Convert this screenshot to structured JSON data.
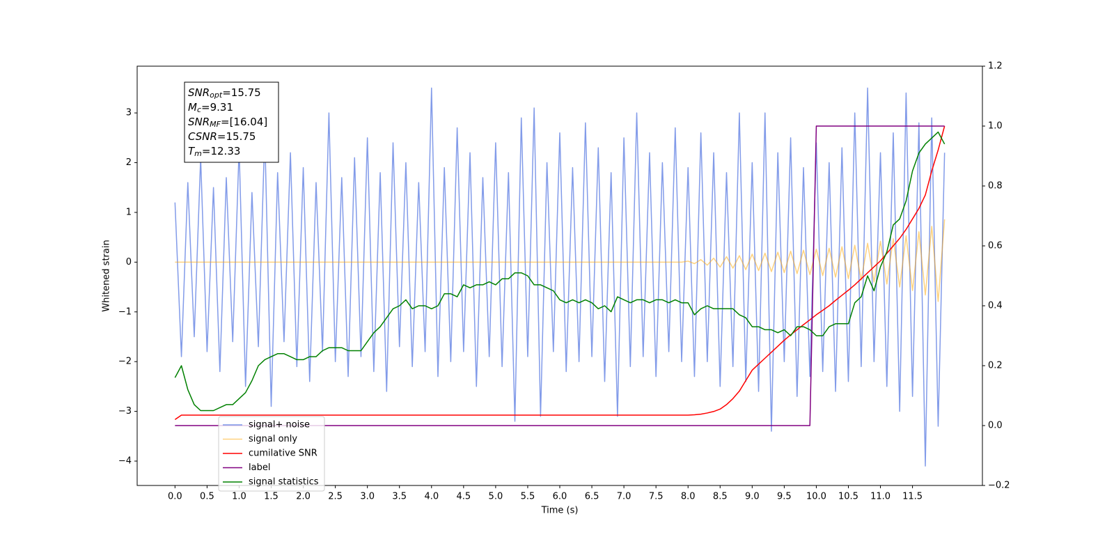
{
  "chart_data": {
    "type": "line",
    "xlabel": "Time (s)",
    "ylabel": "Whitened strain",
    "xlim": [
      -0.59,
      12.59
    ],
    "ylim": [
      -4.49,
      3.94
    ],
    "y2lim": [
      -0.2,
      1.2
    ],
    "xticks": [
      {
        "value": 0,
        "label": "0.0"
      },
      {
        "value": 0.5,
        "label": "0.5"
      },
      {
        "value": 1,
        "label": "1.0"
      },
      {
        "value": 1.5,
        "label": "1.5"
      },
      {
        "value": 2,
        "label": "2.0"
      },
      {
        "value": 2.5,
        "label": "2.5"
      },
      {
        "value": 3,
        "label": "3.0"
      },
      {
        "value": 3.5,
        "label": "3.5"
      },
      {
        "value": 4,
        "label": "4.0"
      },
      {
        "value": 4.5,
        "label": "4.5"
      },
      {
        "value": 5,
        "label": "5.0"
      },
      {
        "value": 5.5,
        "label": "5.5"
      },
      {
        "value": 6,
        "label": "6.0"
      },
      {
        "value": 6.5,
        "label": "6.5"
      },
      {
        "value": 7,
        "label": "7.0"
      },
      {
        "value": 7.5,
        "label": "7.5"
      },
      {
        "value": 8,
        "label": "8.0"
      },
      {
        "value": 8.5,
        "label": "8.5"
      },
      {
        "value": 9,
        "label": "9.0"
      },
      {
        "value": 9.5,
        "label": "9.5"
      },
      {
        "value": 10,
        "label": "10.0"
      },
      {
        "value": 10.5,
        "label": "10.5"
      },
      {
        "value": 11,
        "label": "11.0"
      },
      {
        "value": 11.5,
        "label": "11.5"
      }
    ],
    "yticks": [
      {
        "value": -4,
        "label": "−4"
      },
      {
        "value": -3,
        "label": "−3"
      },
      {
        "value": -2,
        "label": "−2"
      },
      {
        "value": -1,
        "label": "−1"
      },
      0,
      1,
      2,
      3
    ],
    "y2ticks": [
      {
        "value": -0.2,
        "label": "−0.2"
      },
      {
        "value": 0,
        "label": "0.0"
      },
      {
        "value": 0.2,
        "label": "0.2"
      },
      {
        "value": 0.4,
        "label": "0.4"
      },
      {
        "value": 0.6,
        "label": "0.6"
      },
      {
        "value": 0.8,
        "label": "0.8"
      },
      {
        "value": 1,
        "label": "1.0"
      },
      {
        "value": 1.2,
        "label": "1.2"
      }
    ],
    "legend_loc": "lower left",
    "annotation": [
      {
        "main": "SNR",
        "sub": "opt",
        "rest": "=15.75"
      },
      {
        "main": "M",
        "sub": "c",
        "rest": "=9.31"
      },
      {
        "main": "SNR",
        "sub": "MF",
        "rest": "=[16.04]"
      },
      {
        "main": "CSNR",
        "rest": "=15.75"
      },
      {
        "main": "T",
        "sub": "m",
        "rest": "=12.33"
      }
    ],
    "x": [
      0,
      0.1,
      0.2,
      0.3,
      0.4,
      0.5,
      0.6,
      0.7,
      0.8,
      0.9,
      1,
      1.1,
      1.2,
      1.3,
      1.4,
      1.5,
      1.6,
      1.7,
      1.8,
      1.9,
      2,
      2.1,
      2.2,
      2.3,
      2.4,
      2.5,
      2.6,
      2.7,
      2.8,
      2.9,
      3,
      3.1,
      3.2,
      3.3,
      3.4,
      3.5,
      3.6,
      3.7,
      3.8,
      3.9,
      4,
      4.1,
      4.2,
      4.3,
      4.4,
      4.5,
      4.6,
      4.7,
      4.8,
      4.9,
      5,
      5.1,
      5.2,
      5.3,
      5.4,
      5.5,
      5.6,
      5.7,
      5.8,
      5.9,
      6,
      6.1,
      6.2,
      6.3,
      6.4,
      6.5,
      6.6,
      6.7,
      6.8,
      6.9,
      7,
      7.1,
      7.2,
      7.3,
      7.4,
      7.5,
      7.6,
      7.7,
      7.8,
      7.9,
      8,
      8.1,
      8.2,
      8.3,
      8.4,
      8.5,
      8.6,
      8.7,
      8.8,
      8.9,
      9,
      9.1,
      9.2,
      9.3,
      9.4,
      9.5,
      9.6,
      9.7,
      9.8,
      9.9,
      10,
      10.1,
      10.2,
      10.3,
      10.4,
      10.5,
      10.6,
      10.7,
      10.8,
      10.9,
      11,
      11.1,
      11.2,
      11.3,
      11.4,
      11.5,
      11.6,
      11.7,
      11.8,
      11.9,
      12
    ],
    "series": [
      {
        "name": "signal+ noise",
        "color": "#7b96e8",
        "values": [
          1.2,
          -1.9,
          1.6,
          -1.5,
          2.1,
          -1.8,
          1.5,
          -2.2,
          1.7,
          -1.6,
          2.3,
          -2.5,
          1.4,
          -1.7,
          2.6,
          -2.9,
          1.8,
          -1.6,
          2.2,
          -2.1,
          1.9,
          -2.4,
          1.6,
          -1.8,
          3.0,
          -2.0,
          1.7,
          -2.3,
          2.1,
          -1.9,
          2.5,
          -2.2,
          1.8,
          -2.6,
          2.4,
          -1.7,
          2.0,
          -2.1,
          1.6,
          -1.8,
          3.5,
          -2.3,
          1.9,
          -2.0,
          2.7,
          -1.8,
          2.2,
          -2.5,
          1.7,
          -1.9,
          2.4,
          -2.1,
          1.8,
          -3.2,
          2.9,
          -1.9,
          3.1,
          -3.1,
          2.0,
          -1.8,
          2.6,
          -2.2,
          1.9,
          -2.0,
          2.8,
          -1.9,
          2.3,
          -2.4,
          1.8,
          -3.1,
          2.5,
          -2.1,
          3.0,
          -1.9,
          2.2,
          -2.3,
          2.0,
          -1.8,
          2.7,
          -2.0,
          1.9,
          -2.3,
          2.6,
          -2.0,
          2.2,
          -2.5,
          1.8,
          -2.1,
          3.0,
          -2.4,
          2.0,
          -2.6,
          3.0,
          -3.4,
          2.2,
          -2.0,
          2.5,
          -2.7,
          1.9,
          -2.3,
          2.4,
          -2.2,
          2.0,
          -2.6,
          2.3,
          -2.4,
          3.0,
          -2.1,
          3.5,
          -2.0,
          2.2,
          -2.5,
          2.6,
          -3.0,
          3.4,
          -2.7,
          2.8,
          -4.1,
          2.9,
          -3.3,
          2.2
        ]
      },
      {
        "name": "signal only",
        "color": "#ffa500",
        "values": [
          0,
          0,
          0,
          0,
          0,
          0,
          0,
          0,
          0,
          0,
          0,
          0,
          0,
          0,
          0,
          0,
          0,
          0,
          0,
          0,
          0,
          0,
          0,
          0,
          0,
          0,
          0,
          0,
          0,
          0,
          0,
          0,
          0,
          0,
          0,
          0,
          0,
          0,
          0,
          0,
          0,
          0,
          0,
          0,
          0,
          0,
          0,
          0,
          0,
          0,
          0,
          0,
          0,
          0,
          0,
          0,
          0,
          0,
          0,
          0,
          0,
          0,
          0,
          0,
          0,
          0,
          0,
          0,
          0,
          0,
          0,
          0,
          0,
          0,
          0,
          0,
          0,
          0,
          0,
          0,
          0.02,
          -0.03,
          0.05,
          -0.06,
          0.08,
          -0.1,
          0.11,
          -0.12,
          0.13,
          -0.15,
          0.16,
          -0.17,
          0.18,
          -0.19,
          0.2,
          -0.21,
          0.22,
          -0.23,
          0.24,
          -0.25,
          0.26,
          -0.27,
          0.28,
          -0.3,
          0.31,
          -0.33,
          0.34,
          -0.36,
          0.38,
          -0.4,
          0.42,
          -0.44,
          0.47,
          -0.5,
          0.53,
          -0.57,
          0.61,
          -0.66,
          0.72,
          -0.79,
          0.86
        ]
      },
      {
        "name": "cumilative SNR",
        "color": "#ff0000",
        "axis": "y2",
        "values": [
          0.02,
          0.035,
          0.035,
          0.035,
          0.035,
          0.035,
          0.035,
          0.035,
          0.035,
          0.035,
          0.035,
          0.035,
          0.035,
          0.035,
          0.035,
          0.035,
          0.035,
          0.035,
          0.035,
          0.035,
          0.035,
          0.035,
          0.035,
          0.035,
          0.035,
          0.035,
          0.035,
          0.035,
          0.035,
          0.035,
          0.035,
          0.035,
          0.035,
          0.035,
          0.035,
          0.035,
          0.035,
          0.035,
          0.035,
          0.035,
          0.035,
          0.035,
          0.035,
          0.035,
          0.035,
          0.035,
          0.035,
          0.035,
          0.035,
          0.035,
          0.035,
          0.035,
          0.035,
          0.035,
          0.035,
          0.035,
          0.035,
          0.035,
          0.035,
          0.035,
          0.035,
          0.035,
          0.035,
          0.035,
          0.035,
          0.035,
          0.035,
          0.035,
          0.035,
          0.035,
          0.035,
          0.035,
          0.035,
          0.035,
          0.035,
          0.035,
          0.035,
          0.035,
          0.035,
          0.035,
          0.035,
          0.036,
          0.038,
          0.042,
          0.047,
          0.055,
          0.07,
          0.09,
          0.115,
          0.15,
          0.185,
          0.205,
          0.225,
          0.245,
          0.265,
          0.285,
          0.303,
          0.32,
          0.337,
          0.353,
          0.37,
          0.385,
          0.4,
          0.418,
          0.435,
          0.452,
          0.47,
          0.49,
          0.51,
          0.53,
          0.55,
          0.575,
          0.6,
          0.625,
          0.655,
          0.69,
          0.725,
          0.77,
          0.85,
          0.92,
          1.0
        ]
      },
      {
        "name": "label",
        "color": "#800080",
        "axis": "y2",
        "values": [
          0,
          0,
          0,
          0,
          0,
          0,
          0,
          0,
          0,
          0,
          0,
          0,
          0,
          0,
          0,
          0,
          0,
          0,
          0,
          0,
          0,
          0,
          0,
          0,
          0,
          0,
          0,
          0,
          0,
          0,
          0,
          0,
          0,
          0,
          0,
          0,
          0,
          0,
          0,
          0,
          0,
          0,
          0,
          0,
          0,
          0,
          0,
          0,
          0,
          0,
          0,
          0,
          0,
          0,
          0,
          0,
          0,
          0,
          0,
          0,
          0,
          0,
          0,
          0,
          0,
          0,
          0,
          0,
          0,
          0,
          0,
          0,
          0,
          0,
          0,
          0,
          0,
          0,
          0,
          0,
          0,
          0,
          0,
          0,
          0,
          0,
          0,
          0,
          0,
          0,
          0,
          0,
          0,
          0,
          0,
          0,
          0,
          0,
          0,
          0,
          1,
          1,
          1,
          1,
          1,
          1,
          1,
          1,
          1,
          1,
          1,
          1,
          1,
          1,
          1,
          1,
          1,
          1,
          1,
          1,
          1
        ]
      },
      {
        "name": "signal statistics",
        "color": "#008000",
        "axis": "y2",
        "values": [
          0.16,
          0.2,
          0.12,
          0.07,
          0.05,
          0.05,
          0.05,
          0.06,
          0.07,
          0.07,
          0.09,
          0.11,
          0.15,
          0.2,
          0.22,
          0.23,
          0.24,
          0.24,
          0.23,
          0.22,
          0.22,
          0.23,
          0.23,
          0.25,
          0.26,
          0.26,
          0.26,
          0.25,
          0.25,
          0.25,
          0.28,
          0.31,
          0.33,
          0.36,
          0.39,
          0.4,
          0.42,
          0.39,
          0.4,
          0.4,
          0.39,
          0.4,
          0.44,
          0.44,
          0.43,
          0.47,
          0.46,
          0.47,
          0.47,
          0.48,
          0.47,
          0.49,
          0.49,
          0.51,
          0.51,
          0.5,
          0.47,
          0.47,
          0.46,
          0.45,
          0.42,
          0.41,
          0.42,
          0.41,
          0.42,
          0.41,
          0.39,
          0.4,
          0.38,
          0.43,
          0.42,
          0.41,
          0.42,
          0.42,
          0.41,
          0.42,
          0.42,
          0.41,
          0.42,
          0.41,
          0.41,
          0.37,
          0.39,
          0.4,
          0.39,
          0.39,
          0.39,
          0.39,
          0.37,
          0.36,
          0.33,
          0.33,
          0.32,
          0.32,
          0.31,
          0.32,
          0.3,
          0.33,
          0.33,
          0.32,
          0.3,
          0.3,
          0.33,
          0.34,
          0.34,
          0.34,
          0.41,
          0.43,
          0.5,
          0.45,
          0.53,
          0.58,
          0.67,
          0.69,
          0.75,
          0.85,
          0.91,
          0.94,
          0.96,
          0.98,
          0.94
        ]
      }
    ]
  }
}
